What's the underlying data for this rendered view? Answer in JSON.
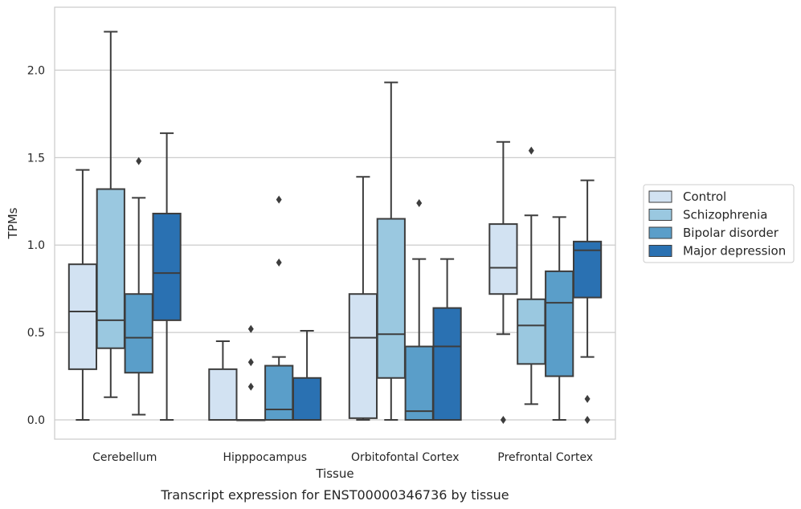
{
  "chart_data": {
    "type": "box",
    "title": "",
    "caption": "Transcript expression for ENST00000346736 by tissue",
    "xlabel": "Tissue",
    "ylabel": "TPMs",
    "ylim": [
      -0.11,
      2.36
    ],
    "yticks": [
      0.0,
      0.5,
      1.0,
      1.5,
      2.0
    ],
    "ytick_labels": [
      "0.0",
      "0.5",
      "1.0",
      "1.5",
      "2.0"
    ],
    "grid": "horizontal",
    "legend_position": "right",
    "categories": [
      "Cerebellum",
      "Hipppocampus",
      "Orbitofontal Cortex",
      "Prefrontal Cortex"
    ],
    "series": [
      {
        "name": "Control",
        "color": "#d2e2f2",
        "boxes": [
          {
            "whislo": 0.0,
            "q1": 0.29,
            "med": 0.62,
            "q3": 0.89,
            "whishi": 1.43,
            "fliers": []
          },
          {
            "whislo": 0.0,
            "q1": 0.0,
            "med": 0.0,
            "q3": 0.29,
            "whishi": 0.45,
            "fliers": []
          },
          {
            "whislo": 0.0,
            "q1": 0.01,
            "med": 0.47,
            "q3": 0.72,
            "whishi": 1.39,
            "fliers": []
          },
          {
            "whislo": 0.49,
            "q1": 0.72,
            "med": 0.87,
            "q3": 1.12,
            "whishi": 1.59,
            "fliers": [
              0.0
            ]
          }
        ]
      },
      {
        "name": "Schizophrenia",
        "color": "#9ac8e0",
        "boxes": [
          {
            "whislo": 0.13,
            "q1": 0.41,
            "med": 0.57,
            "q3": 1.32,
            "whishi": 2.22,
            "fliers": []
          },
          {
            "whislo": 0.0,
            "q1": 0.0,
            "med": 0.0,
            "q3": 0.0,
            "whishi": 0.0,
            "fliers": [
              0.19,
              0.33,
              0.52
            ]
          },
          {
            "whislo": 0.0,
            "q1": 0.24,
            "med": 0.49,
            "q3": 1.15,
            "whishi": 1.93,
            "fliers": []
          },
          {
            "whislo": 0.09,
            "q1": 0.32,
            "med": 0.54,
            "q3": 0.69,
            "whishi": 1.17,
            "fliers": [
              1.54
            ]
          }
        ]
      },
      {
        "name": "Bipolar disorder",
        "color": "#5a9ec9",
        "boxes": [
          {
            "whislo": 0.03,
            "q1": 0.27,
            "med": 0.47,
            "q3": 0.72,
            "whishi": 1.27,
            "fliers": [
              1.48
            ]
          },
          {
            "whislo": 0.0,
            "q1": 0.0,
            "med": 0.06,
            "q3": 0.31,
            "whishi": 0.36,
            "fliers": [
              0.9,
              1.26
            ]
          },
          {
            "whislo": 0.0,
            "q1": 0.0,
            "med": 0.05,
            "q3": 0.42,
            "whishi": 0.92,
            "fliers": [
              1.24
            ]
          },
          {
            "whislo": 0.0,
            "q1": 0.25,
            "med": 0.67,
            "q3": 0.85,
            "whishi": 1.16,
            "fliers": []
          }
        ]
      },
      {
        "name": "Major depression",
        "color": "#2a71b2",
        "boxes": [
          {
            "whislo": 0.0,
            "q1": 0.57,
            "med": 0.84,
            "q3": 1.18,
            "whishi": 1.64,
            "fliers": []
          },
          {
            "whislo": 0.0,
            "q1": 0.0,
            "med": 0.0,
            "q3": 0.24,
            "whishi": 0.51,
            "fliers": []
          },
          {
            "whislo": 0.0,
            "q1": 0.0,
            "med": 0.42,
            "q3": 0.64,
            "whishi": 0.92,
            "fliers": []
          },
          {
            "whislo": 0.36,
            "q1": 0.7,
            "med": 0.97,
            "q3": 1.02,
            "whishi": 1.37,
            "fliers": [
              0.0,
              0.12
            ]
          }
        ]
      }
    ]
  }
}
